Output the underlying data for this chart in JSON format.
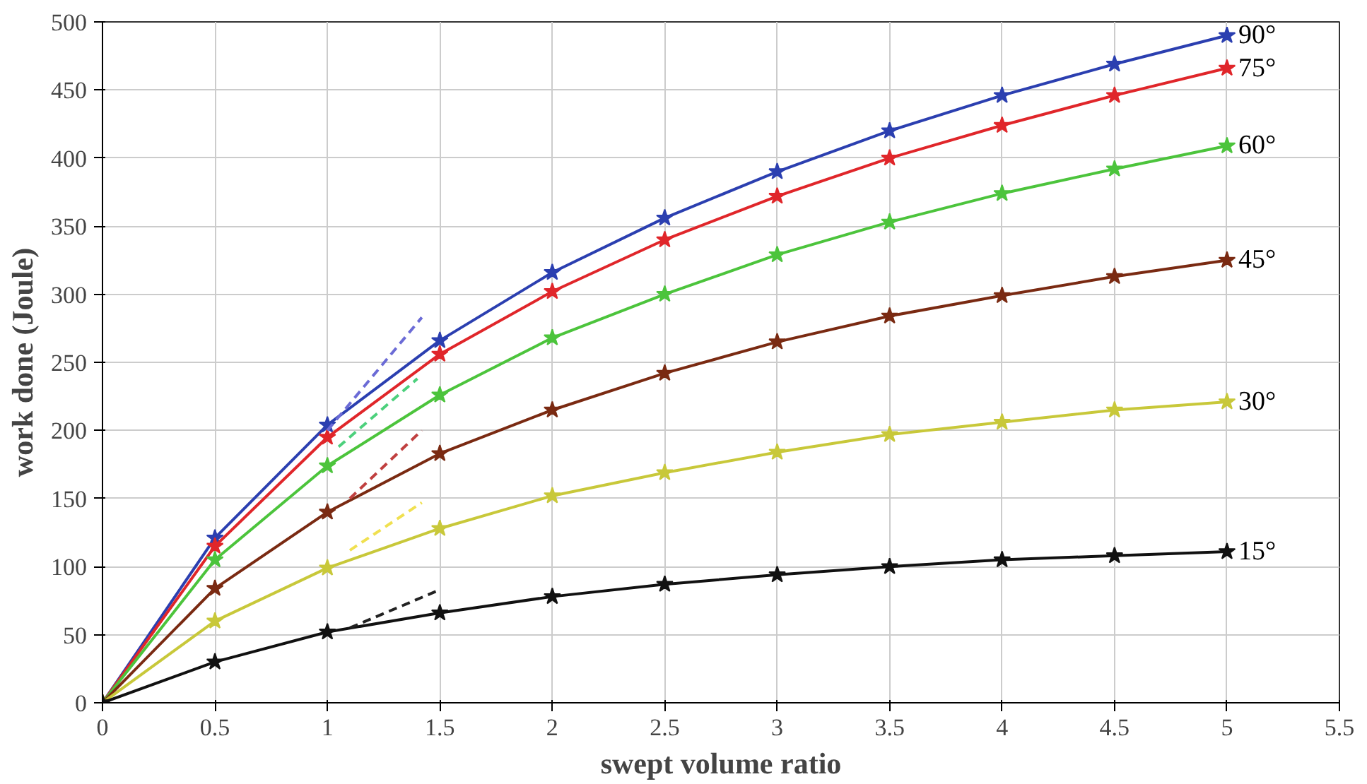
{
  "chart_data": {
    "type": "line",
    "xlabel": "swept volume ratio",
    "ylabel": "work done (Joule)",
    "x": [
      0,
      0.5,
      1,
      1.5,
      2,
      2.5,
      3,
      3.5,
      4,
      4.5,
      5
    ],
    "xlim": [
      0,
      5.5
    ],
    "xticks": [
      0,
      0.5,
      1,
      1.5,
      2,
      2.5,
      3,
      3.5,
      4,
      4.5,
      5,
      5.5
    ],
    "ylim": [
      0,
      500
    ],
    "yticks": [
      0,
      50,
      100,
      150,
      200,
      250,
      300,
      350,
      400,
      450,
      500
    ],
    "grid": true,
    "marker": "star",
    "line_style": "solid",
    "series": [
      {
        "name": "90°",
        "color": "#2b3fb0",
        "values": [
          0,
          121,
          204,
          266,
          316,
          356,
          390,
          420,
          446,
          469,
          490
        ]
      },
      {
        "name": "75°",
        "color": "#e0262a",
        "values": [
          0,
          115,
          195,
          256,
          302,
          340,
          372,
          400,
          424,
          446,
          466
        ]
      },
      {
        "name": "60°",
        "color": "#4cc43c",
        "values": [
          0,
          105,
          174,
          226,
          268,
          300,
          329,
          353,
          374,
          392,
          409
        ]
      },
      {
        "name": "45°",
        "color": "#7a2a12",
        "values": [
          0,
          84,
          140,
          183,
          215,
          242,
          265,
          284,
          299,
          313,
          325
        ]
      },
      {
        "name": "30°",
        "color": "#c8c83a",
        "values": [
          0,
          60,
          99,
          128,
          152,
          169,
          184,
          197,
          206,
          215,
          221
        ]
      },
      {
        "name": "15°",
        "color": "#111111",
        "values": [
          0,
          30,
          52,
          66,
          78,
          87,
          94,
          100,
          105,
          108,
          111
        ]
      },
      {
        "color": "#6b6bd6",
        "x": [
          1.0,
          1.42
        ],
        "values": [
          200,
          283
        ],
        "line_style": "dashed",
        "marker": "none"
      },
      {
        "color": "#4cd07c",
        "x": [
          1.05,
          1.4
        ],
        "values": [
          188,
          238
        ],
        "line_style": "dashed",
        "marker": "none"
      },
      {
        "color": "#c04040",
        "x": [
          1.1,
          1.42
        ],
        "values": [
          150,
          200
        ],
        "line_style": "dashed",
        "marker": "none"
      },
      {
        "color": "#f0e050",
        "x": [
          1.1,
          1.42
        ],
        "values": [
          112,
          147
        ],
        "line_style": "dashed",
        "marker": "none"
      },
      {
        "color": "#222222",
        "x": [
          1.1,
          1.5
        ],
        "values": [
          55,
          83
        ],
        "line_style": "dashed",
        "marker": "none"
      }
    ]
  }
}
